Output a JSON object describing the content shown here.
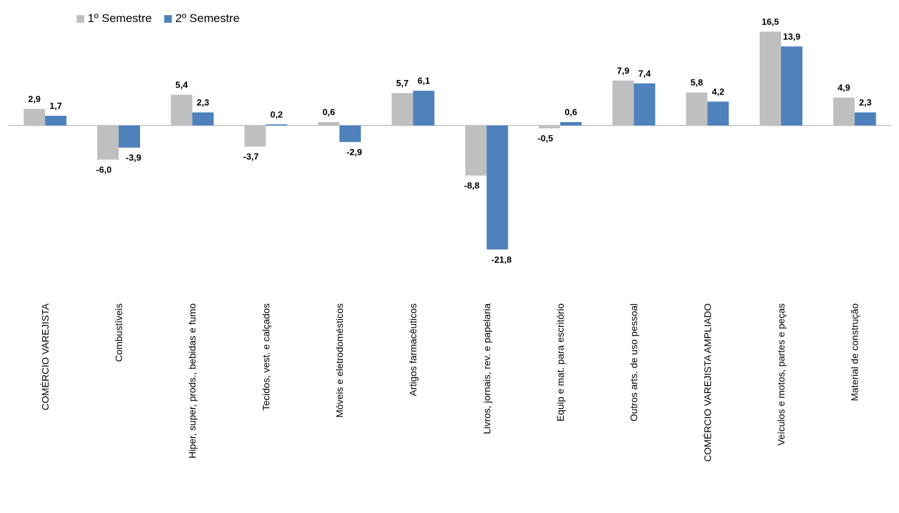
{
  "chart_data": {
    "type": "bar",
    "title": "",
    "xlabel": "",
    "ylabel": "",
    "categories": [
      "COMÉRCIO VAREJISTA",
      "Combustíveis",
      "Hiper, super, prods., bebidas e fumo",
      "Tecidos, vest. e calçados",
      "Móveis e eletrodomésticos",
      "Artigos farmacêuticos",
      "Livros, jornais, rev. e papelaria",
      "Equip e mat. para escritório",
      "Outros arts. de uso pessoal",
      "COMÉRCIO VAREJISTA AMPLIADO",
      "Veículos e motos, partes e peças",
      "Material de construção"
    ],
    "series": [
      {
        "name": "1º Semestre",
        "color": "#bfbfbf",
        "values": [
          2.9,
          -6.0,
          5.4,
          -3.7,
          0.6,
          5.7,
          -8.8,
          -0.5,
          7.9,
          5.8,
          16.5,
          4.9
        ],
        "labels": [
          "2,9",
          "-6,0",
          "5,4",
          "-3,7",
          "0,6",
          "5,7",
          "-8,8",
          "-0,5",
          "7,9",
          "5,8",
          "16,5",
          "4,9"
        ]
      },
      {
        "name": "2º Semestre",
        "color": "#4f81bd",
        "values": [
          1.7,
          -3.9,
          2.3,
          0.2,
          -2.9,
          6.1,
          -21.8,
          0.6,
          7.4,
          4.2,
          13.9,
          2.3
        ],
        "labels": [
          "1,7",
          "-3,9",
          "2,3",
          "0,2",
          "-2,9",
          "6,1",
          "-21,8",
          "0,6",
          "7,4",
          "4,2",
          "13,9",
          "2,3"
        ]
      }
    ],
    "legend_position": "top-left",
    "grid": false,
    "ylim": [
      -24,
      18
    ]
  }
}
